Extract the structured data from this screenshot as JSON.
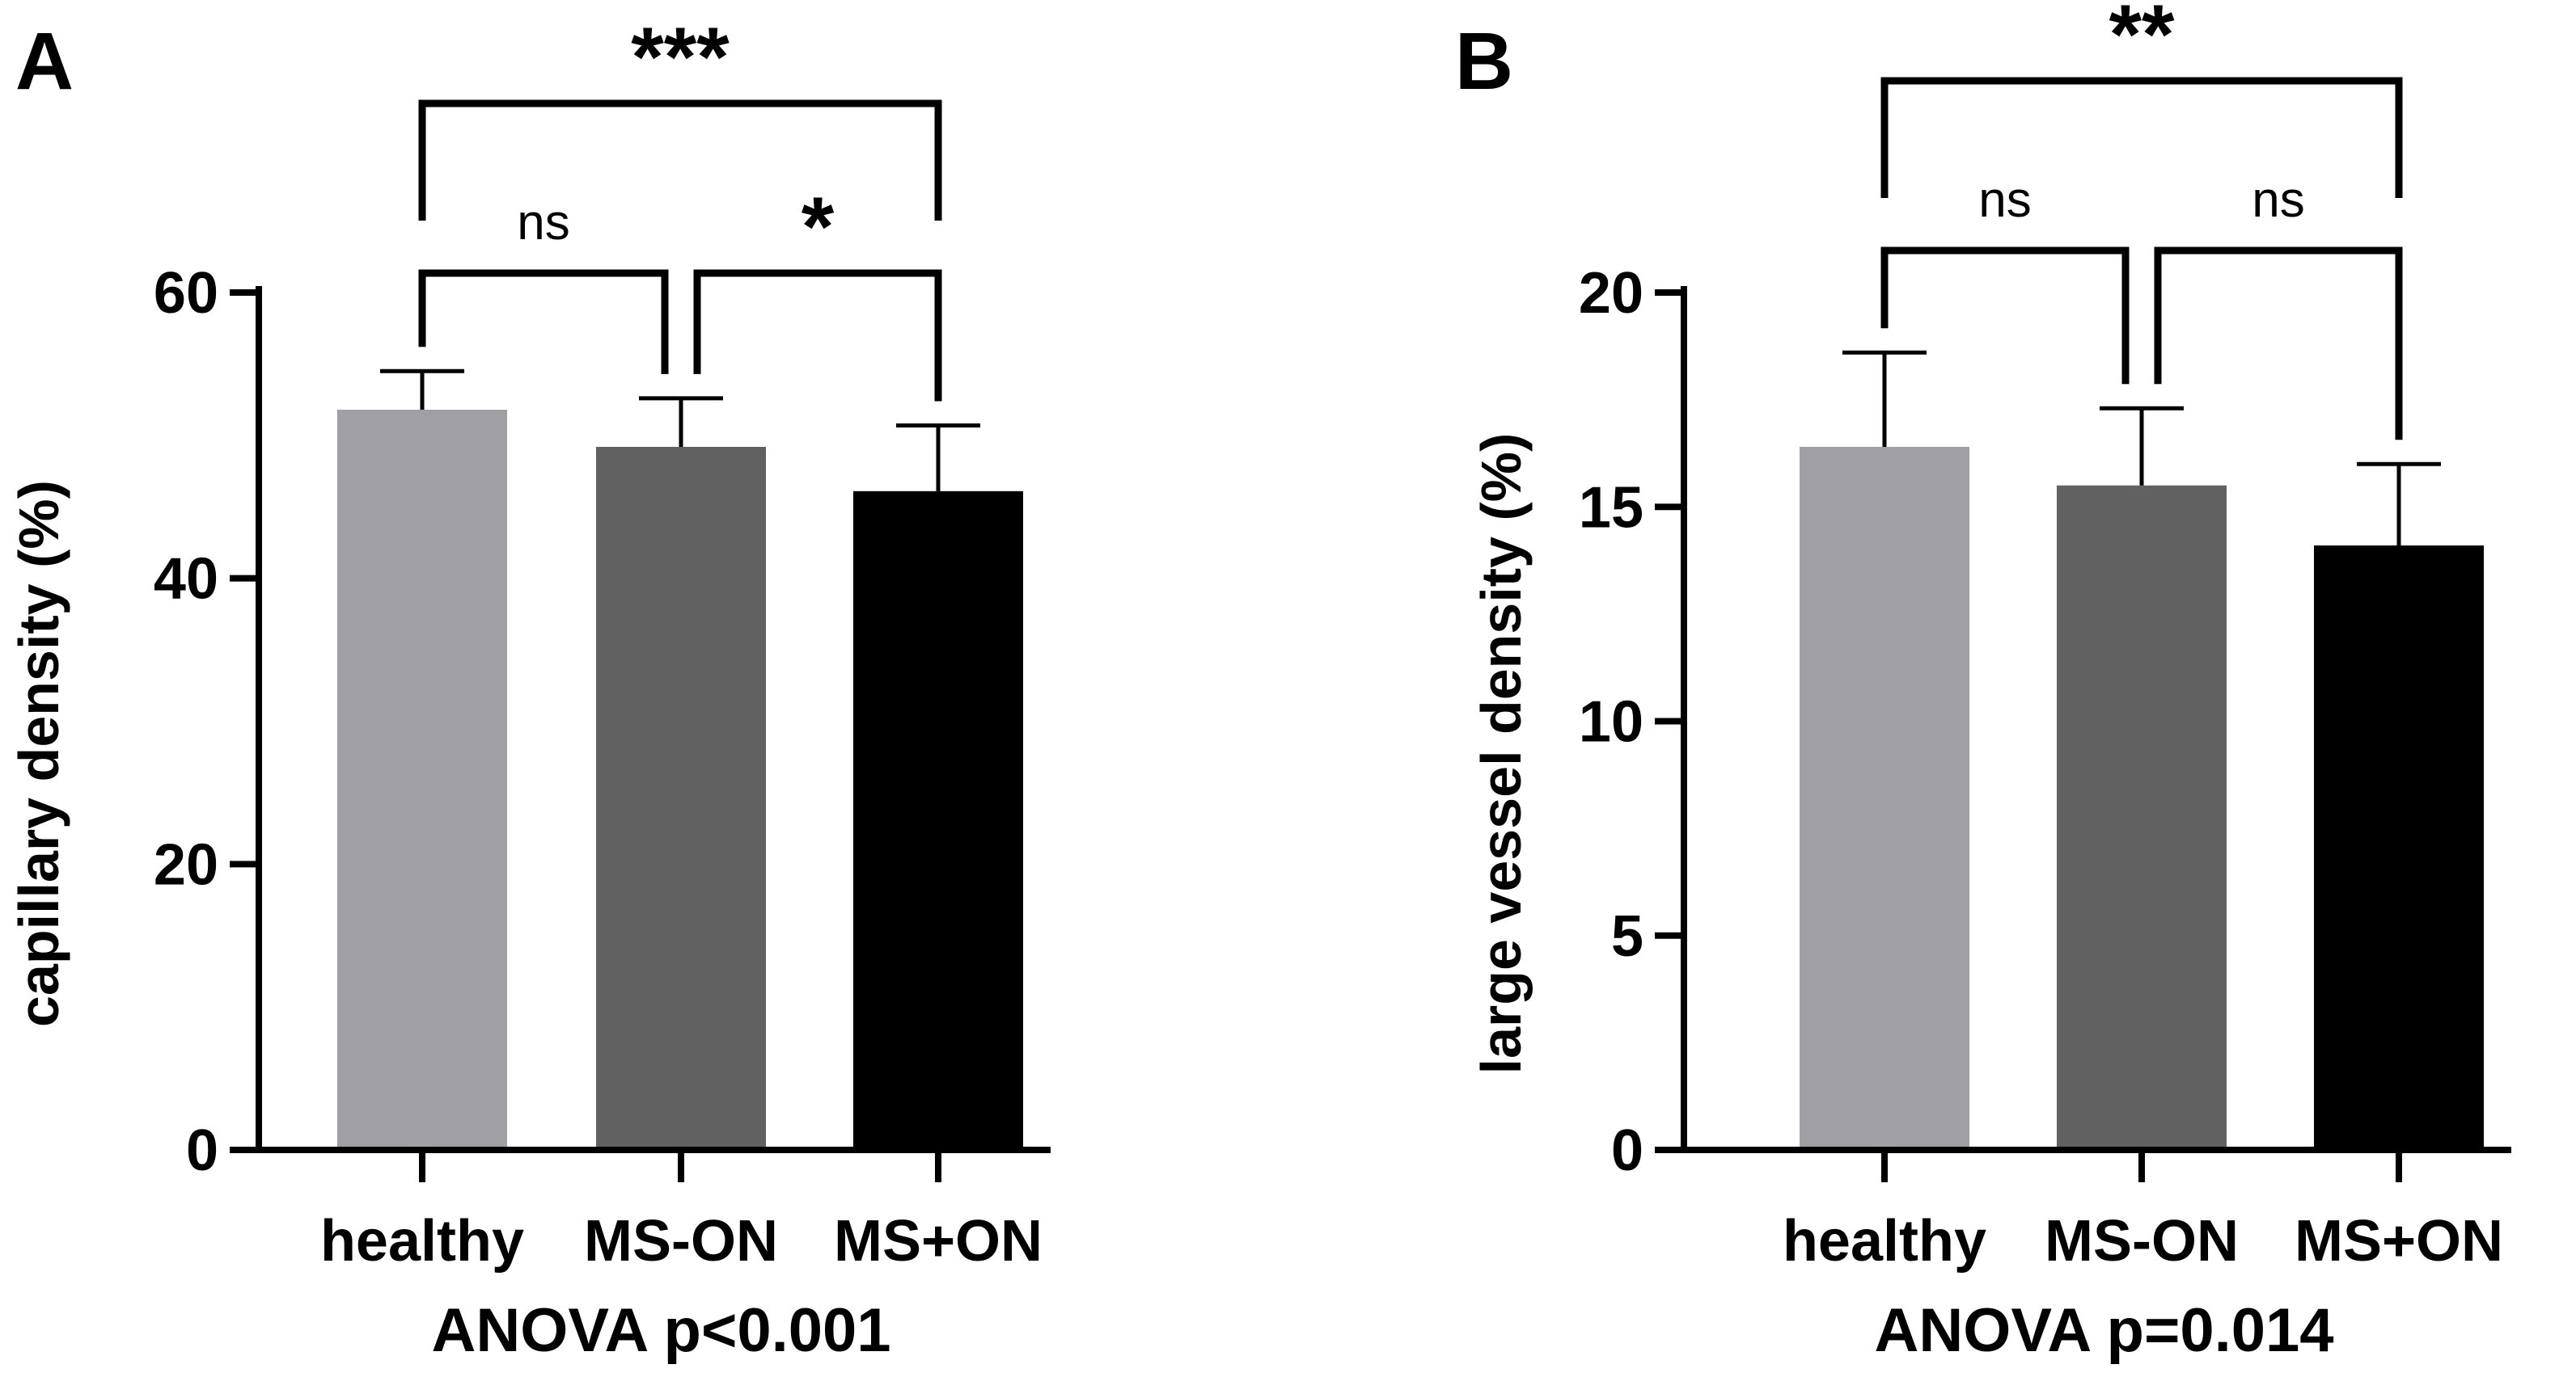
{
  "chart_data": [
    {
      "panel": "A",
      "type": "bar",
      "categories": [
        "healthy",
        "MS-ON",
        "MS+ON"
      ],
      "values": [
        51.8,
        49.2,
        46.1
      ],
      "error": [
        2.7,
        3.4,
        4.6
      ],
      "colors": [
        "#a0a0a4",
        "#616161",
        "#000000"
      ],
      "ylabel": "capillary density (%)",
      "xlabel": "ANOVA p<0.001",
      "ylim": [
        0,
        60
      ],
      "yticks": [
        0,
        20,
        40,
        60
      ],
      "brackets": [
        {
          "from": 0,
          "to": 1,
          "label": "ns",
          "level": 0
        },
        {
          "from": 1,
          "to": 2,
          "label": "*",
          "level": 0
        },
        {
          "from": 0,
          "to": 2,
          "label": "***",
          "level": 1
        }
      ]
    },
    {
      "panel": "B",
      "type": "bar",
      "categories": [
        "healthy",
        "MS-ON",
        "MS+ON"
      ],
      "values": [
        16.4,
        15.5,
        14.1
      ],
      "error": [
        2.2,
        1.8,
        1.9
      ],
      "colors": [
        "#a0a0a4",
        "#616161",
        "#000000"
      ],
      "ylabel": "large vessel density (%)",
      "xlabel": "ANOVA p=0.014",
      "ylim": [
        0,
        20
      ],
      "yticks": [
        0,
        5,
        10,
        15,
        20
      ],
      "brackets": [
        {
          "from": 0,
          "to": 1,
          "label": "ns",
          "level": 0
        },
        {
          "from": 1,
          "to": 2,
          "label": "ns",
          "level": 0
        },
        {
          "from": 0,
          "to": 2,
          "label": "**",
          "level": 1
        }
      ]
    }
  ]
}
